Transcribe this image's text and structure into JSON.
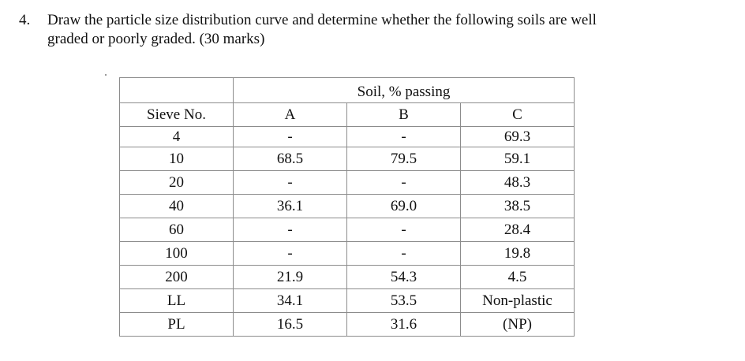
{
  "question": {
    "number": "4.",
    "line1": "Draw the particle size distribution curve and determine whether the following soils are well",
    "line2": "graded or poorly graded.  (30 marks)"
  },
  "table": {
    "group_header": "Soil, % passing",
    "headers": [
      "Sieve No.",
      "A",
      "B",
      "C"
    ],
    "rows": [
      [
        "4",
        "-",
        "-",
        "69.3"
      ],
      [
        "10",
        "68.5",
        "79.5",
        "59.1"
      ],
      [
        "20",
        "-",
        "-",
        "48.3"
      ],
      [
        "40",
        "36.1",
        "69.0",
        "38.5"
      ],
      [
        "60",
        "-",
        "-",
        "28.4"
      ],
      [
        "100",
        "-",
        "-",
        "19.8"
      ],
      [
        "200",
        "21.9",
        "54.3",
        "4.5"
      ],
      [
        "LL",
        "34.1",
        "53.5",
        "Non-plastic"
      ],
      [
        "PL",
        "16.5",
        "31.6",
        "(NP)"
      ]
    ]
  }
}
